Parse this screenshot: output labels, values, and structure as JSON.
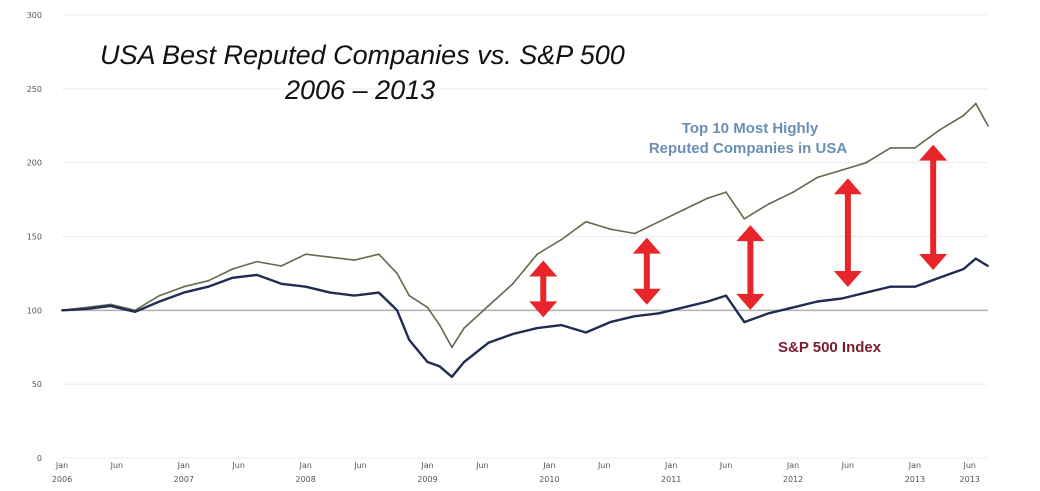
{
  "chart_data": {
    "type": "line",
    "title": "USA Best Reputed Companies vs. S&P 500",
    "subtitle": "2006 – 2013",
    "ylim": [
      0,
      300
    ],
    "y_ticks": [
      0,
      50,
      100,
      150,
      200,
      250,
      300
    ],
    "x_ticks": [
      {
        "x": 2006.0,
        "label": "Jan",
        "year": "2006"
      },
      {
        "x": 2006.45,
        "label": "Jun",
        "year": ""
      },
      {
        "x": 2007.0,
        "label": "Jan",
        "year": "2007"
      },
      {
        "x": 2007.45,
        "label": "Jun",
        "year": ""
      },
      {
        "x": 2008.0,
        "label": "Jan",
        "year": "2008"
      },
      {
        "x": 2008.45,
        "label": "Jun",
        "year": ""
      },
      {
        "x": 2009.0,
        "label": "Jan",
        "year": "2009"
      },
      {
        "x": 2009.45,
        "label": "Jun",
        "year": ""
      },
      {
        "x": 2010.0,
        "label": "Jan",
        "year": "2010"
      },
      {
        "x": 2010.45,
        "label": "Jun",
        "year": ""
      },
      {
        "x": 2011.0,
        "label": "Jan",
        "year": "2011"
      },
      {
        "x": 2011.45,
        "label": "Jun",
        "year": ""
      },
      {
        "x": 2012.0,
        "label": "Jan",
        "year": "2012"
      },
      {
        "x": 2012.45,
        "label": "Jun",
        "year": ""
      },
      {
        "x": 2013.0,
        "label": "Jan",
        "year": "2013"
      },
      {
        "x": 2013.45,
        "label": "Jun",
        "year": "2013"
      }
    ],
    "xlim": [
      2006.0,
      2013.6
    ],
    "baseline": 100,
    "series": [
      {
        "name": "Top 10 Most Highly Reputed Companies in USA",
        "label_lines": [
          "Top 10 Most Highly",
          "Reputed Companies in USA"
        ],
        "color": "#5f6b4c",
        "x": [
          2006.0,
          2006.2,
          2006.4,
          2006.6,
          2006.8,
          2007.0,
          2007.2,
          2007.4,
          2007.6,
          2007.8,
          2008.0,
          2008.2,
          2008.4,
          2008.6,
          2008.75,
          2008.85,
          2009.0,
          2009.1,
          2009.2,
          2009.3,
          2009.5,
          2009.7,
          2009.9,
          2010.1,
          2010.3,
          2010.5,
          2010.7,
          2010.9,
          2011.1,
          2011.3,
          2011.45,
          2011.6,
          2011.8,
          2012.0,
          2012.2,
          2012.4,
          2012.6,
          2012.8,
          2013.0,
          2013.2,
          2013.4,
          2013.5,
          2013.6
        ],
        "values": [
          100,
          102,
          104,
          100,
          110,
          116,
          120,
          128,
          133,
          130,
          138,
          136,
          134,
          138,
          125,
          110,
          102,
          90,
          75,
          88,
          103,
          118,
          138,
          148,
          160,
          155,
          152,
          160,
          168,
          176,
          180,
          162,
          172,
          180,
          190,
          195,
          200,
          210,
          210,
          222,
          232,
          240,
          225
        ]
      },
      {
        "name": "S&P 500 Index",
        "label_lines": [
          "S&P 500 Index"
        ],
        "color": "#1f2d52",
        "x": [
          2006.0,
          2006.2,
          2006.4,
          2006.6,
          2006.8,
          2007.0,
          2007.2,
          2007.4,
          2007.6,
          2007.8,
          2008.0,
          2008.2,
          2008.4,
          2008.6,
          2008.75,
          2008.85,
          2009.0,
          2009.1,
          2009.2,
          2009.3,
          2009.5,
          2009.7,
          2009.9,
          2010.1,
          2010.3,
          2010.5,
          2010.7,
          2010.9,
          2011.1,
          2011.3,
          2011.45,
          2011.6,
          2011.8,
          2012.0,
          2012.2,
          2012.4,
          2012.6,
          2012.8,
          2013.0,
          2013.2,
          2013.4,
          2013.5,
          2013.6
        ],
        "values": [
          100,
          101,
          103,
          99,
          106,
          112,
          116,
          122,
          124,
          118,
          116,
          112,
          110,
          112,
          100,
          80,
          65,
          62,
          55,
          65,
          78,
          84,
          88,
          90,
          85,
          92,
          96,
          98,
          102,
          106,
          110,
          92,
          98,
          102,
          106,
          108,
          112,
          116,
          116,
          122,
          128,
          135,
          130
        ]
      }
    ],
    "gap_arrows_x": [
      2009.95,
      2010.8,
      2011.65,
      2012.45,
      2013.15
    ]
  }
}
